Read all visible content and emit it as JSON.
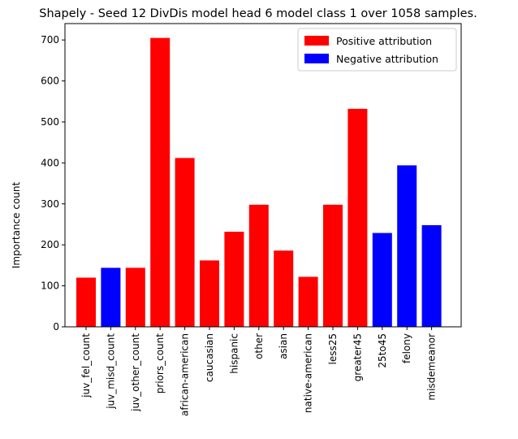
{
  "chart_data": {
    "type": "bar",
    "title": "Shapely - Seed 12 DivDis model head 6 model class 1 over 1058 samples.",
    "xlabel": "",
    "ylabel": "Importance count",
    "ylim": [
      0,
      740
    ],
    "yticks": [
      0,
      100,
      200,
      300,
      400,
      500,
      600,
      700
    ],
    "grid": false,
    "legend_position": "top-right",
    "colors": {
      "positive": "#ff0000",
      "negative": "#0000ff"
    },
    "legend": [
      {
        "label": "Positive attribution",
        "color": "#ff0000"
      },
      {
        "label": "Negative attribution",
        "color": "#0000ff"
      }
    ],
    "categories": [
      "juv_fel_count",
      "juv_misd_count",
      "juv_other_count",
      "priors_count",
      "african-american",
      "caucasian",
      "hispanic",
      "other",
      "asian",
      "native-american",
      "less25",
      "greater45",
      "25to45",
      "felony",
      "misdemeanor"
    ],
    "values": [
      120,
      144,
      144,
      705,
      412,
      162,
      232,
      298,
      186,
      122,
      298,
      532,
      229,
      394,
      248
    ],
    "signs": [
      "positive",
      "negative",
      "positive",
      "positive",
      "positive",
      "positive",
      "positive",
      "positive",
      "positive",
      "positive",
      "positive",
      "positive",
      "negative",
      "negative",
      "negative"
    ]
  }
}
